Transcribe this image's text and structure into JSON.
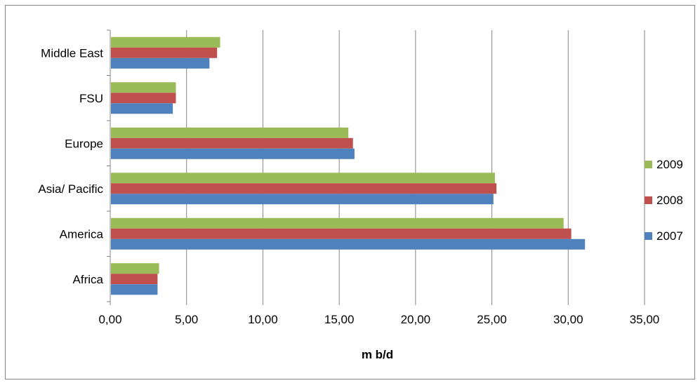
{
  "chart_data": {
    "type": "bar",
    "orientation": "horizontal",
    "categories": [
      "Africa",
      "America",
      "Asia/ Pacific",
      "Europe",
      "FSU",
      "Middle East"
    ],
    "series": [
      {
        "name": "2007",
        "color": "#4F81BD",
        "values": [
          3.1,
          31.1,
          25.1,
          16.0,
          4.1,
          6.5
        ]
      },
      {
        "name": "2008",
        "color": "#C0504D",
        "values": [
          3.1,
          30.2,
          25.3,
          15.9,
          4.3,
          7.0
        ]
      },
      {
        "name": "2009",
        "color": "#9BBB59",
        "values": [
          3.2,
          29.7,
          25.2,
          15.6,
          4.3,
          7.2
        ]
      }
    ],
    "xlabel": "m b/d",
    "xlim": [
      0,
      35
    ],
    "xticks": [
      "0,00",
      "5,00",
      "10,00",
      "15,00",
      "20,00",
      "25,00",
      "30,00",
      "35,00"
    ],
    "grid": "vertical",
    "legend": {
      "placement": "right",
      "order": [
        "2009",
        "2008",
        "2007"
      ]
    }
  }
}
